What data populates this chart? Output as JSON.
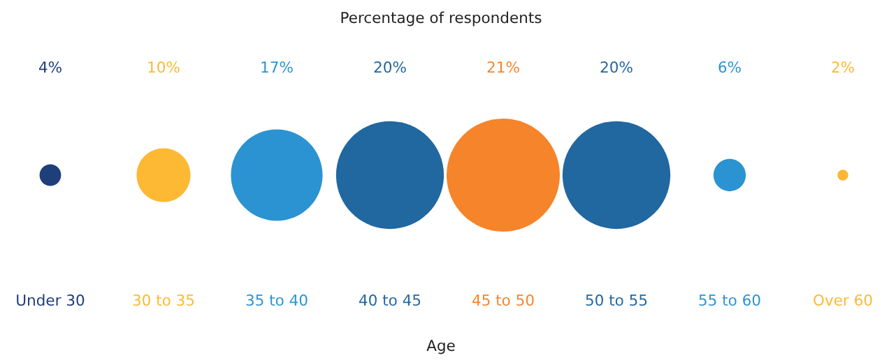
{
  "chart_data": {
    "type": "other",
    "title": "Percentage of respondents",
    "xlabel": "Age",
    "categories": [
      "Under 30",
      "30 to 35",
      "35 to 40",
      "40 to 45",
      "45 to 50",
      "50 to 55",
      "55 to 60",
      "Over 60"
    ],
    "values": [
      4,
      10,
      17,
      20,
      21,
      20,
      6,
      2
    ],
    "value_labels": [
      "4%",
      "10%",
      "17%",
      "20%",
      "21%",
      "20%",
      "6%",
      "2%"
    ],
    "colors": [
      "#1f3f7a",
      "#fdb933",
      "#2b93d1",
      "#2167a0",
      "#f5842a",
      "#2167a0",
      "#2b93d1",
      "#fdb933"
    ]
  }
}
